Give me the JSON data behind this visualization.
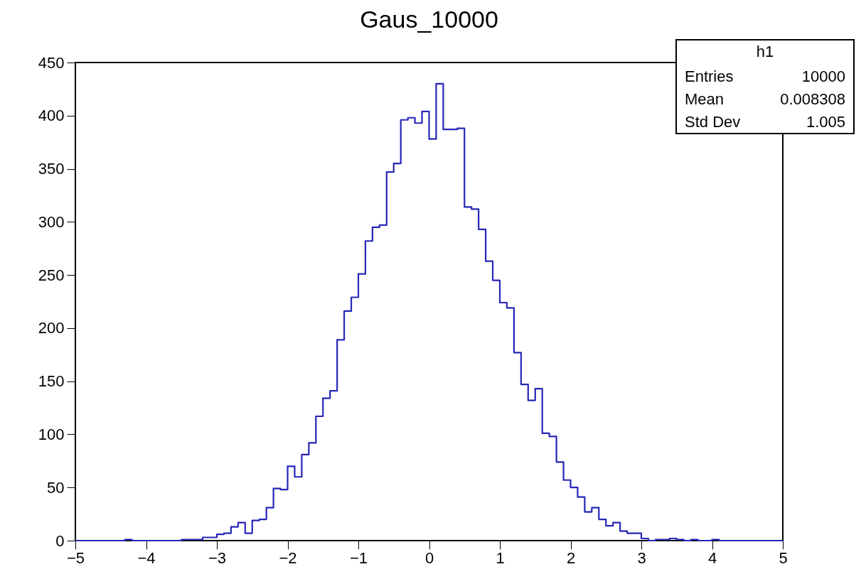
{
  "chart_data": {
    "type": "histogram",
    "title": "Gaus_10000",
    "bins": [
      -5,
      -4.9,
      -4.8,
      -4.7,
      -4.6,
      -4.5,
      -4.4,
      -4.3,
      -4.2,
      -4.1,
      -4,
      -3.9,
      -3.8,
      -3.7,
      -3.6,
      -3.5,
      -3.4,
      -3.3,
      -3.2,
      -3.1,
      -3,
      -2.9,
      -2.8,
      -2.7,
      -2.6,
      -2.5,
      -2.4,
      -2.3,
      -2.2,
      -2.1,
      -2,
      -1.9,
      -1.8,
      -1.7,
      -1.6,
      -1.5,
      -1.4,
      -1.3,
      -1.2,
      -1.1,
      -1,
      -0.9,
      -0.8,
      -0.7,
      -0.6,
      -0.5,
      -0.4,
      -0.3,
      -0.2,
      -0.1,
      0,
      0.1,
      0.2,
      0.3,
      0.4,
      0.5,
      0.6,
      0.7,
      0.8,
      0.9,
      1,
      1.1,
      1.2,
      1.3,
      1.4,
      1.5,
      1.6,
      1.7,
      1.8,
      1.9,
      2,
      2.1,
      2.2,
      2.3,
      2.4,
      2.5,
      2.6,
      2.7,
      2.8,
      2.9,
      3,
      3.1,
      3.2,
      3.3,
      3.4,
      3.5,
      3.6,
      3.7,
      3.8,
      3.9,
      4,
      4.1,
      4.2,
      4.3,
      4.4,
      4.5,
      4.6,
      4.7,
      4.8,
      4.9,
      5
    ],
    "values": [
      0,
      0,
      0,
      0,
      0,
      0,
      0,
      1,
      0,
      0,
      0,
      0,
      0,
      0,
      0,
      1,
      1,
      1,
      3,
      3,
      6,
      7,
      13,
      17,
      7,
      19,
      20,
      31,
      49,
      48,
      70,
      60,
      81,
      92,
      117,
      134,
      141,
      189,
      216,
      229,
      251,
      282,
      295,
      297,
      347,
      355,
      396,
      398,
      393,
      404,
      378,
      430,
      387,
      387,
      388,
      314,
      312,
      293,
      263,
      245,
      224,
      219,
      177,
      147,
      132,
      143,
      101,
      98,
      74,
      57,
      50,
      41,
      27,
      31,
      20,
      14,
      17,
      9,
      7,
      7,
      2,
      0,
      1,
      1,
      2,
      1,
      0,
      1,
      0,
      0,
      1,
      0,
      0,
      0,
      0,
      0,
      0,
      0,
      0,
      0
    ],
    "color": "#2626b8",
    "xlim": [
      -5,
      5
    ],
    "xticks": [
      -5,
      -4,
      -3,
      -2,
      -1,
      0,
      1,
      2,
      3,
      4,
      5
    ],
    "ylim": [
      0,
      450
    ],
    "yticks": [
      0,
      50,
      100,
      150,
      200,
      250,
      300,
      350,
      400,
      450
    ],
    "annotations": [
      "h1",
      "Entries",
      "10000",
      "Mean",
      "0.008308",
      "Std Dev",
      "1.005"
    ]
  }
}
